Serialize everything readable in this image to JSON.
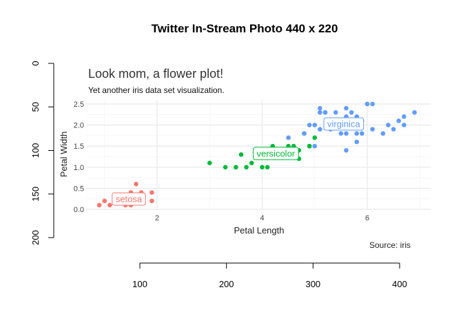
{
  "outer": {
    "title": "Twitter In-Stream Photo 440 x 220",
    "x_ticks": [
      100,
      200,
      300,
      400
    ],
    "y_ticks": [
      0,
      50,
      100,
      150,
      200
    ]
  },
  "chart_data": {
    "type": "scatter",
    "title": "Look mom, a flower plot!",
    "subtitle": "Yet another iris data set visualization.",
    "caption": "Source: iris",
    "xlabel": "Petal Length",
    "ylabel": "Petal Width",
    "x_ticks": [
      2,
      4,
      6
    ],
    "y_ticks": [
      0.0,
      0.5,
      1.0,
      1.5,
      2.0,
      2.5
    ],
    "y_tick_labels": [
      "0.0",
      "0.5",
      "1.0",
      "1.5",
      "2.0",
      "2.5"
    ],
    "xlim": [
      0.7,
      7.1
    ],
    "ylim": [
      -0.05,
      2.6
    ],
    "grid": true,
    "legend": "none (direct labels)",
    "series": [
      {
        "name": "setosa",
        "color": "#F8766D",
        "label_at": [
          1.462,
          0.246
        ],
        "points": [
          [
            1.4,
            0.2
          ],
          [
            1.3,
            0.2
          ],
          [
            1.5,
            0.2
          ],
          [
            1.7,
            0.4
          ],
          [
            1.4,
            0.3
          ],
          [
            1.5,
            0.1
          ],
          [
            1.1,
            0.1
          ],
          [
            1.2,
            0.2
          ],
          [
            1.0,
            0.2
          ],
          [
            1.9,
            0.4
          ],
          [
            1.6,
            0.2
          ],
          [
            1.6,
            0.6
          ],
          [
            1.9,
            0.2
          ],
          [
            1.5,
            0.4
          ],
          [
            1.3,
            0.3
          ],
          [
            1.4,
            0.1
          ],
          [
            1.5,
            0.3
          ],
          [
            0.9,
            0.1
          ]
        ]
      },
      {
        "name": "versicolor",
        "color": "#00BA38",
        "label_at": [
          4.26,
          1.326
        ],
        "points": [
          [
            4.7,
            1.4
          ],
          [
            4.5,
            1.5
          ],
          [
            4.9,
            1.5
          ],
          [
            4.0,
            1.3
          ],
          [
            4.6,
            1.5
          ],
          [
            3.3,
            1.0
          ],
          [
            3.9,
            1.4
          ],
          [
            3.5,
            1.0
          ],
          [
            4.2,
            1.5
          ],
          [
            3.6,
            1.3
          ],
          [
            4.4,
            1.4
          ],
          [
            4.1,
            1.0
          ],
          [
            4.8,
            1.8
          ],
          [
            3.0,
            1.1
          ],
          [
            4.3,
            1.3
          ],
          [
            5.0,
            1.7
          ],
          [
            4.5,
            1.3
          ],
          [
            3.8,
            1.1
          ],
          [
            3.7,
            1.0
          ],
          [
            4.0,
            1.0
          ],
          [
            4.6,
            1.4
          ],
          [
            4.7,
            1.2
          ],
          [
            4.4,
            1.3
          ],
          [
            4.9,
            1.5
          ]
        ]
      },
      {
        "name": "virginica",
        "color": "#619CFF",
        "label_at": [
          5.552,
          2.026
        ],
        "points": [
          [
            6.0,
            2.5
          ],
          [
            5.1,
            1.9
          ],
          [
            5.9,
            2.1
          ],
          [
            5.6,
            1.8
          ],
          [
            5.8,
            2.2
          ],
          [
            6.6,
            2.1
          ],
          [
            4.5,
            1.7
          ],
          [
            6.3,
            1.8
          ],
          [
            6.1,
            2.5
          ],
          [
            5.3,
            1.9
          ],
          [
            5.5,
            2.1
          ],
          [
            5.0,
            2.0
          ],
          [
            5.1,
            2.4
          ],
          [
            6.7,
            2.2
          ],
          [
            6.9,
            2.3
          ],
          [
            5.0,
            1.5
          ],
          [
            5.7,
            2.3
          ],
          [
            4.9,
            2.0
          ],
          [
            4.8,
            1.8
          ],
          [
            5.4,
            2.3
          ],
          [
            5.6,
            2.4
          ],
          [
            5.1,
            2.3
          ],
          [
            5.2,
            2.3
          ],
          [
            5.5,
            1.8
          ],
          [
            6.4,
            2.0
          ],
          [
            5.6,
            1.4
          ],
          [
            6.1,
            1.9
          ],
          [
            5.6,
            2.2
          ],
          [
            5.8,
            1.6
          ],
          [
            5.9,
            1.8
          ],
          [
            6.5,
            1.9
          ],
          [
            6.7,
            2.0
          ],
          [
            5.8,
            1.8
          ],
          [
            5.2,
            2.3
          ]
        ]
      }
    ]
  }
}
